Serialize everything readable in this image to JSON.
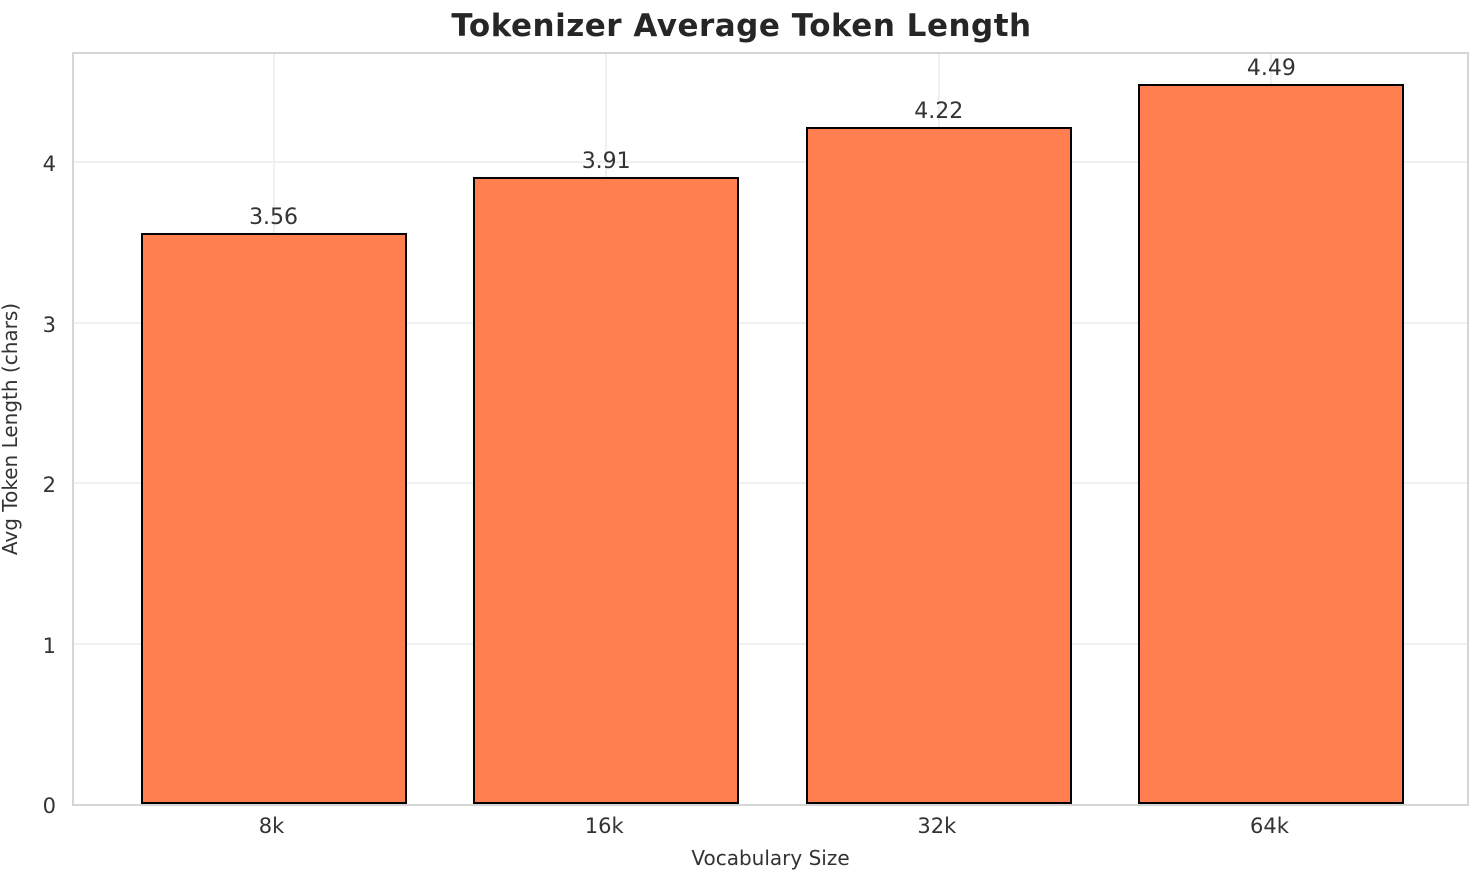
{
  "chart_data": {
    "type": "bar",
    "title": "Tokenizer Average Token Length",
    "xlabel": "Vocabulary Size",
    "ylabel": "Avg Token Length (chars)",
    "categories": [
      "8k",
      "16k",
      "32k",
      "64k"
    ],
    "values": [
      3.56,
      3.91,
      4.22,
      4.49
    ],
    "value_labels": [
      "3.56",
      "3.91",
      "4.22",
      "4.49"
    ],
    "yticks": [
      0,
      1,
      2,
      3,
      4
    ],
    "ylim": [
      0,
      4.7
    ],
    "grid": true,
    "legend": "none",
    "bar_color": "#FF7F50",
    "bar_edge_color": "#000000",
    "grid_color": "#F0F0F0",
    "spine_color": "#D5D5D5",
    "title_color": "#262626",
    "text_color": "#333333"
  }
}
